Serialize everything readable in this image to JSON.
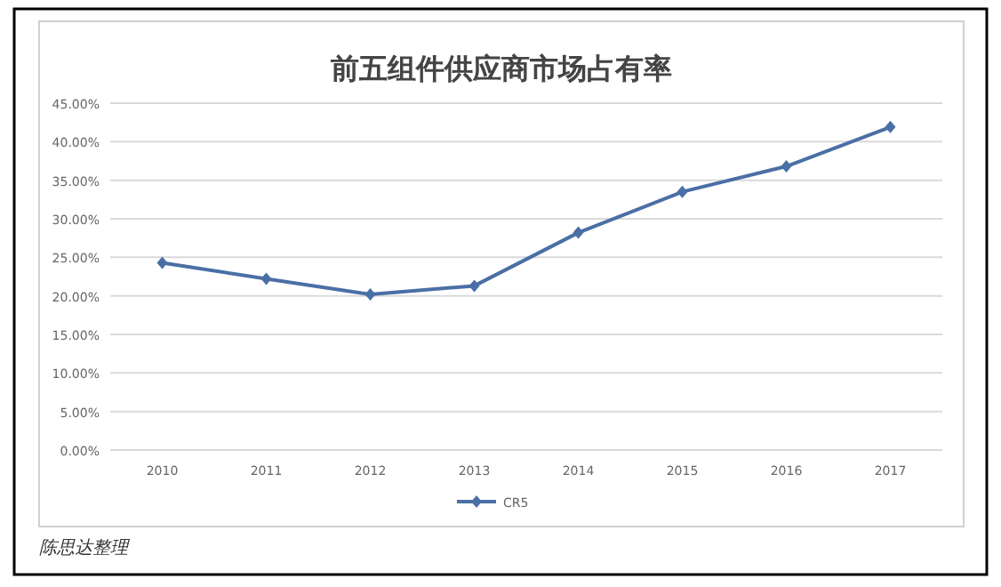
{
  "chart_data": {
    "type": "line",
    "title": "前五组件供应商市场占有率",
    "categories": [
      "2010",
      "2011",
      "2012",
      "2013",
      "2014",
      "2015",
      "2016",
      "2017"
    ],
    "series": [
      {
        "name": "CR5",
        "color": "#4a6fa5",
        "values": [
          24.3,
          22.2,
          20.2,
          21.3,
          28.2,
          33.5,
          36.8,
          41.9
        ]
      }
    ],
    "ylim": [
      0,
      45
    ],
    "yticks": [
      {
        "value": 0,
        "label": "0.00%"
      },
      {
        "value": 5,
        "label": "5.00%"
      },
      {
        "value": 10,
        "label": "10.00%"
      },
      {
        "value": 15,
        "label": "15.00%"
      },
      {
        "value": 20,
        "label": "20.00%"
      },
      {
        "value": 25,
        "label": "25.00%"
      },
      {
        "value": 30,
        "label": "30.00%"
      },
      {
        "value": 35,
        "label": "35.00%"
      },
      {
        "value": 40,
        "label": "40.00%"
      },
      {
        "value": 45,
        "label": "45.00%"
      }
    ],
    "grid": "y",
    "legend": "bottom",
    "marker": "diamond",
    "line_style": "solid",
    "annotations": [
      "陈思达整理"
    ]
  }
}
